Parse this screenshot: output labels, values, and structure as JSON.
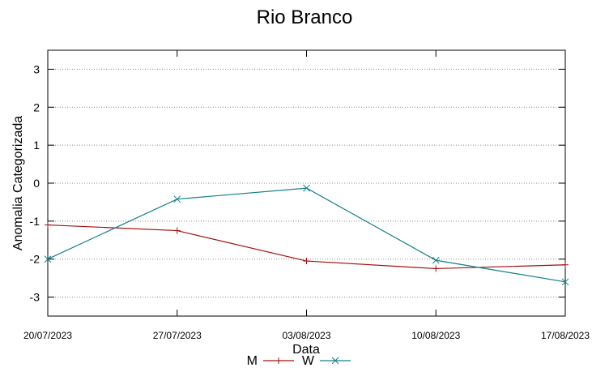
{
  "chart_data": {
    "type": "line",
    "title": "Rio Branco",
    "xlabel": "Data",
    "ylabel": "Anomalia Categorizada",
    "x": [
      "20/07/2023",
      "27/07/2023",
      "03/08/2023",
      "10/08/2023",
      "17/08/2023"
    ],
    "x_tick_labels": [
      "20/07/2023",
      "27/07/2023",
      "03/08/2023",
      "10/08/2023",
      "17/08/2023"
    ],
    "y_ticks": [
      3,
      2,
      1,
      0,
      -1,
      -2,
      -3
    ],
    "ylim": [
      -3.5,
      3.5
    ],
    "grid": true,
    "legend_position": "bottom-center",
    "series": [
      {
        "name": "M",
        "color": "#a01010",
        "marker": "plus",
        "values": [
          -1.1,
          -1.25,
          -2.05,
          -2.25,
          -2.15
        ]
      },
      {
        "name": "W",
        "color": "#11808a",
        "marker": "cross",
        "values": [
          -2.0,
          -0.42,
          -0.13,
          -2.03,
          -2.6
        ]
      }
    ]
  }
}
